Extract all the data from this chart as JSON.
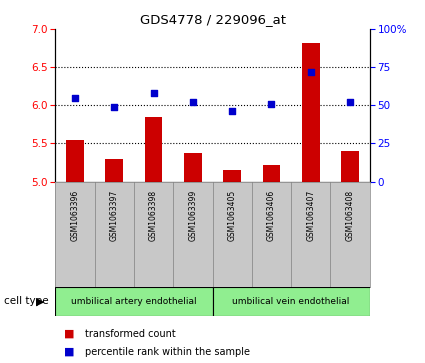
{
  "title": "GDS4778 / 229096_at",
  "samples": [
    "GSM1063396",
    "GSM1063397",
    "GSM1063398",
    "GSM1063399",
    "GSM1063405",
    "GSM1063406",
    "GSM1063407",
    "GSM1063408"
  ],
  "transformed_counts": [
    5.55,
    5.3,
    5.85,
    5.38,
    5.15,
    5.22,
    6.82,
    5.4
  ],
  "percentile_ranks": [
    55,
    49,
    58,
    52,
    46,
    51,
    72,
    52
  ],
  "ylim_left": [
    5,
    7
  ],
  "ylim_right": [
    0,
    100
  ],
  "yticks_left": [
    5,
    5.5,
    6,
    6.5,
    7
  ],
  "yticks_right": [
    0,
    25,
    50,
    75,
    100
  ],
  "ytick_labels_right": [
    "0",
    "25",
    "50",
    "75",
    "100%"
  ],
  "bar_color": "#cc0000",
  "dot_color": "#0000cc",
  "bar_bottom": 5.0,
  "cell_type_groups": [
    {
      "label": "umbilical artery endothelial",
      "n": 4,
      "color": "#90ee90"
    },
    {
      "label": "umbilical vein endothelial",
      "n": 4,
      "color": "#90ee90"
    }
  ],
  "cell_type_label": "cell type",
  "legend_items": [
    {
      "label": "transformed count",
      "color": "#cc0000"
    },
    {
      "label": "percentile rank within the sample",
      "color": "#0000cc"
    }
  ],
  "bg_color": "#ffffff",
  "sample_bg_color": "#c8c8c8",
  "figsize": [
    4.25,
    3.63
  ],
  "dpi": 100,
  "grid_dotted_at": [
    5.5,
    6.0,
    6.5
  ],
  "grid_color": "#000000"
}
